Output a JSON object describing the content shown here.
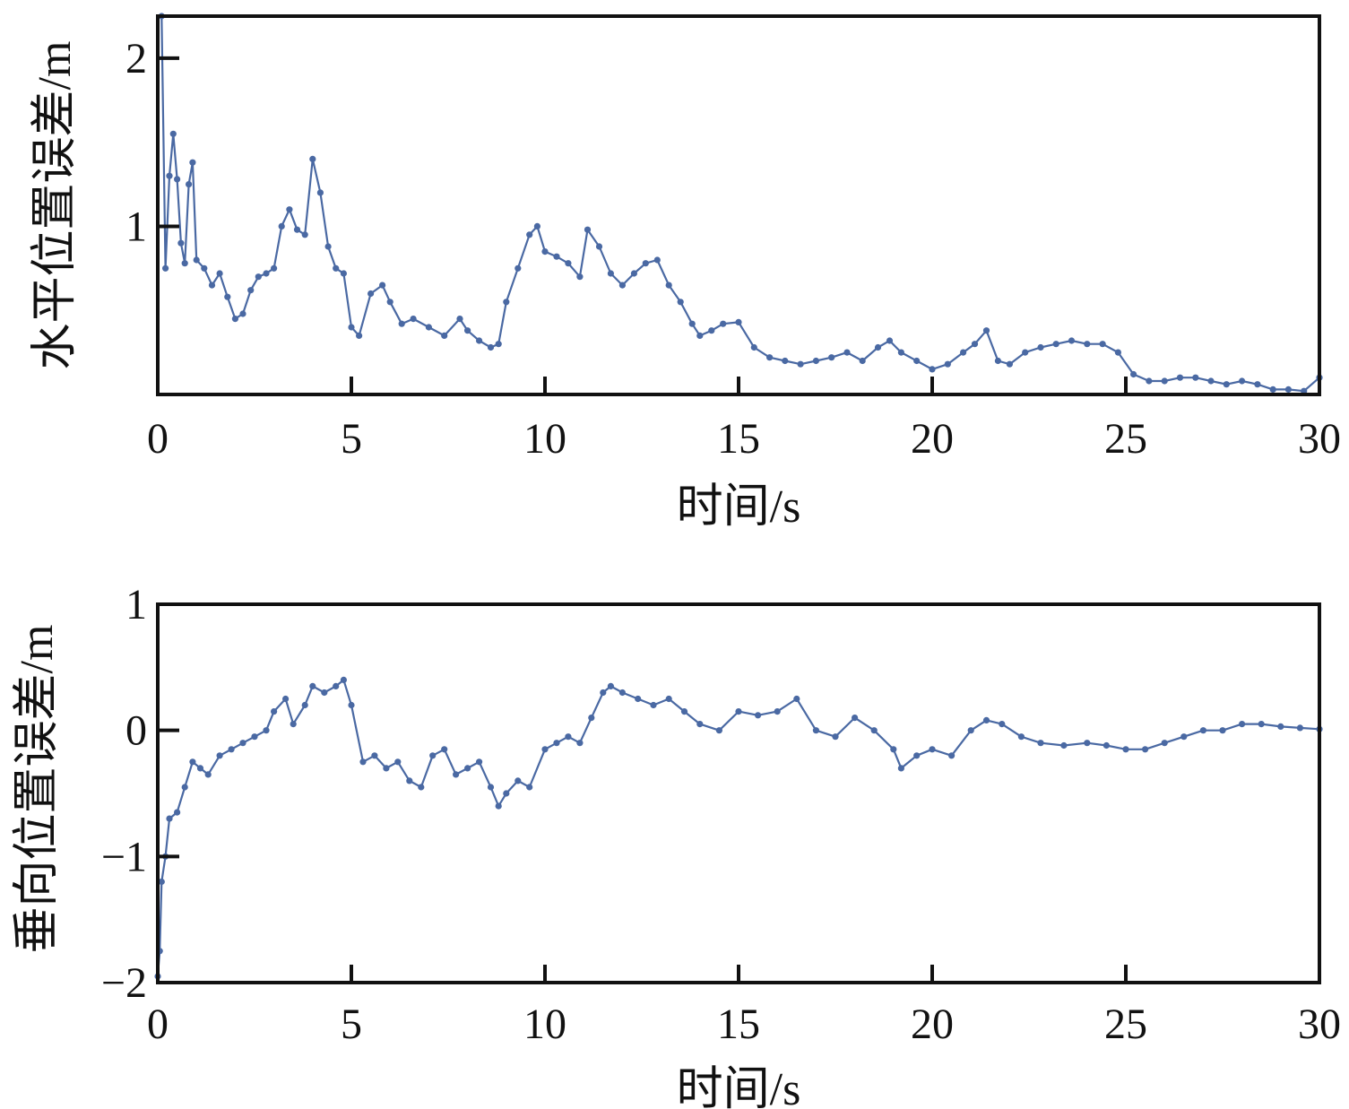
{
  "colors": {
    "series": "#4a69a3",
    "axes": "#111111"
  },
  "chart_data": [
    {
      "type": "line",
      "xlabel": "时间/s",
      "ylabel": "水平位置误差/m",
      "xlim": [
        0,
        30
      ],
      "ylim": [
        0,
        2.25
      ],
      "xticks": [
        0,
        5,
        10,
        15,
        20,
        25,
        30
      ],
      "yticks": [
        1,
        2
      ],
      "grid": false,
      "markers": true,
      "series": [
        {
          "x": [
            0.1,
            0.2,
            0.3,
            0.4,
            0.5,
            0.6,
            0.7,
            0.8,
            0.9,
            1.0,
            1.2,
            1.4,
            1.6,
            1.8,
            2.0,
            2.2,
            2.4,
            2.6,
            2.8,
            3.0,
            3.2,
            3.4,
            3.6,
            3.8,
            4.0,
            4.2,
            4.4,
            4.6,
            4.8,
            5.0,
            5.2,
            5.5,
            5.8,
            6.0,
            6.3,
            6.6,
            7.0,
            7.4,
            7.8,
            8.0,
            8.3,
            8.6,
            8.8,
            9.0,
            9.3,
            9.6,
            9.8,
            10.0,
            10.3,
            10.6,
            10.9,
            11.1,
            11.4,
            11.7,
            12.0,
            12.3,
            12.6,
            12.9,
            13.2,
            13.5,
            13.8,
            14.0,
            14.3,
            14.6,
            15.0,
            15.4,
            15.8,
            16.2,
            16.6,
            17.0,
            17.4,
            17.8,
            18.2,
            18.6,
            18.9,
            19.2,
            19.6,
            20.0,
            20.4,
            20.8,
            21.1,
            21.4,
            21.7,
            22.0,
            22.4,
            22.8,
            23.2,
            23.6,
            24.0,
            24.4,
            24.8,
            25.2,
            25.6,
            26.0,
            26.4,
            26.8,
            27.2,
            27.6,
            28.0,
            28.4,
            28.8,
            29.2,
            29.6,
            30.0
          ],
          "values": [
            2.25,
            0.75,
            1.3,
            1.55,
            1.28,
            0.9,
            0.78,
            1.25,
            1.38,
            0.8,
            0.75,
            0.65,
            0.72,
            0.58,
            0.45,
            0.48,
            0.62,
            0.7,
            0.72,
            0.75,
            1.0,
            1.1,
            0.98,
            0.95,
            1.4,
            1.2,
            0.88,
            0.75,
            0.72,
            0.4,
            0.35,
            0.6,
            0.65,
            0.55,
            0.42,
            0.45,
            0.4,
            0.35,
            0.45,
            0.38,
            0.32,
            0.28,
            0.3,
            0.55,
            0.75,
            0.95,
            1.0,
            0.85,
            0.82,
            0.78,
            0.7,
            0.98,
            0.88,
            0.72,
            0.65,
            0.72,
            0.78,
            0.8,
            0.65,
            0.55,
            0.42,
            0.35,
            0.38,
            0.42,
            0.43,
            0.28,
            0.22,
            0.2,
            0.18,
            0.2,
            0.22,
            0.25,
            0.2,
            0.28,
            0.32,
            0.25,
            0.2,
            0.15,
            0.18,
            0.25,
            0.3,
            0.38,
            0.2,
            0.18,
            0.25,
            0.28,
            0.3,
            0.32,
            0.3,
            0.3,
            0.25,
            0.12,
            0.08,
            0.08,
            0.1,
            0.1,
            0.08,
            0.06,
            0.08,
            0.06,
            0.03,
            0.03,
            0.02,
            0.1
          ]
        }
      ]
    },
    {
      "type": "line",
      "xlabel": "时间/s",
      "ylabel": "垂向位置误差/m",
      "xlim": [
        0,
        30
      ],
      "ylim": [
        -2,
        1
      ],
      "xticks": [
        0,
        5,
        10,
        15,
        20,
        25,
        30
      ],
      "yticks": [
        -2,
        -1,
        0,
        1
      ],
      "grid": false,
      "markers": true,
      "series": [
        {
          "x": [
            0.0,
            0.05,
            0.1,
            0.2,
            0.3,
            0.5,
            0.7,
            0.9,
            1.1,
            1.3,
            1.6,
            1.9,
            2.2,
            2.5,
            2.8,
            3.0,
            3.3,
            3.5,
            3.8,
            4.0,
            4.3,
            4.6,
            4.8,
            5.0,
            5.3,
            5.6,
            5.9,
            6.2,
            6.5,
            6.8,
            7.1,
            7.4,
            7.7,
            8.0,
            8.3,
            8.6,
            8.8,
            9.0,
            9.3,
            9.6,
            10.0,
            10.3,
            10.6,
            10.9,
            11.2,
            11.5,
            11.7,
            12.0,
            12.4,
            12.8,
            13.2,
            13.6,
            14.0,
            14.5,
            15.0,
            15.5,
            16.0,
            16.5,
            17.0,
            17.5,
            18.0,
            18.5,
            19.0,
            19.2,
            19.6,
            20.0,
            20.5,
            21.0,
            21.4,
            21.8,
            22.3,
            22.8,
            23.4,
            24.0,
            24.5,
            25.0,
            25.5,
            26.0,
            26.5,
            27.0,
            27.5,
            28.0,
            28.5,
            29.0,
            29.5,
            30.0
          ],
          "values": [
            -1.95,
            -1.75,
            -1.2,
            -1.0,
            -0.7,
            -0.65,
            -0.45,
            -0.25,
            -0.3,
            -0.35,
            -0.2,
            -0.15,
            -0.1,
            -0.05,
            0.0,
            0.15,
            0.25,
            0.05,
            0.2,
            0.35,
            0.3,
            0.35,
            0.4,
            0.2,
            -0.25,
            -0.2,
            -0.3,
            -0.25,
            -0.4,
            -0.45,
            -0.2,
            -0.15,
            -0.35,
            -0.3,
            -0.25,
            -0.45,
            -0.6,
            -0.5,
            -0.4,
            -0.45,
            -0.15,
            -0.1,
            -0.05,
            -0.1,
            0.1,
            0.3,
            0.35,
            0.3,
            0.25,
            0.2,
            0.25,
            0.15,
            0.05,
            0.0,
            0.15,
            0.12,
            0.15,
            0.25,
            0.0,
            -0.05,
            0.1,
            0.0,
            -0.15,
            -0.3,
            -0.2,
            -0.15,
            -0.2,
            0.0,
            0.08,
            0.05,
            -0.05,
            -0.1,
            -0.12,
            -0.1,
            -0.12,
            -0.15,
            -0.15,
            -0.1,
            -0.05,
            0.0,
            0.0,
            0.05,
            0.05,
            0.03,
            0.02,
            0.01
          ]
        }
      ]
    }
  ]
}
